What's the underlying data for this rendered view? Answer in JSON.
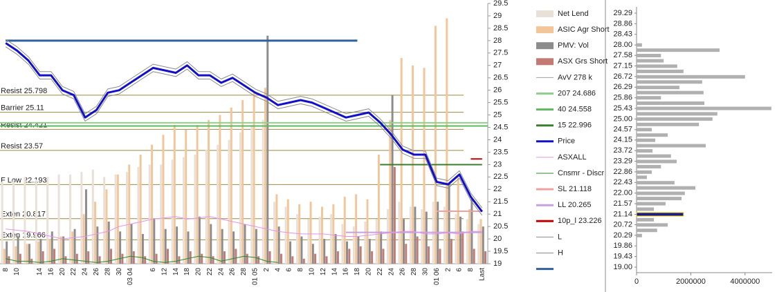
{
  "chart_data": [
    {
      "type": "bar",
      "categories": [
        "8",
        "10",
        null,
        "14",
        "16",
        "20",
        "22",
        "24",
        "26",
        "28",
        "30",
        "03 04",
        null,
        "6",
        "12",
        "14",
        "18",
        "20",
        "22",
        "24",
        "26",
        "28",
        "01 05",
        "2",
        "4",
        "6",
        "8",
        "10",
        "12",
        "14",
        "16",
        "18",
        "20",
        "22",
        "24",
        "26",
        "28",
        "30",
        "01 06",
        "2",
        "6",
        "8",
        "Last"
      ],
      "ylim": [
        19,
        29.5
      ],
      "yticks": [
        19,
        19.5,
        20,
        20.5,
        21,
        21.5,
        22,
        22.5,
        23,
        23.5,
        24,
        24.5,
        25,
        25.5,
        26,
        26.5,
        27,
        27.5,
        28,
        28.5,
        29,
        29.5
      ],
      "series": [
        {
          "name": "Net Lend",
          "kind": "bar",
          "color": "#e9e0d7",
          "values": [
            22.3,
            22.4,
            22.5,
            22.4,
            22.5,
            22.6,
            22.6,
            22.7,
            22.8,
            22.5,
            22.6,
            22.7,
            22.9,
            23.0,
            23.0,
            23.2,
            23.3,
            23.4,
            23.6,
            23.8,
            24.0,
            24.3,
            24.6,
            24.8,
            21.5,
            21.3,
            21.0,
            20.8,
            20.9,
            21.0,
            20.6,
            20.5,
            20.7,
            20.8,
            21.2,
            21.5,
            21.3,
            21.2,
            21.5,
            21.3,
            21.0,
            20.8,
            20.6
          ]
        },
        {
          "name": "ASIC Agr Short",
          "kind": "bar",
          "color": "#f3c699",
          "values": [
            19.6,
            19.7,
            19.8,
            19.9,
            20.0,
            20.1,
            20.3,
            21.0,
            21.5,
            22.0,
            22.6,
            23.0,
            23.4,
            23.8,
            24.2,
            24.6,
            24.4,
            24.6,
            24.8,
            25.0,
            25.3,
            25.6,
            25.9,
            26.1,
            21.8,
            21.6,
            21.4,
            21.5,
            21.3,
            21.4,
            21.7,
            21.8,
            21.6,
            23.4,
            24.8,
            27.3,
            27.0,
            26.9,
            28.6,
            28.9,
            22.5,
            21.2,
            20.8
          ]
        },
        {
          "name": "PMV: Vol",
          "kind": "bar",
          "color": "#8c8c8c",
          "values": [
            19.9,
            20.1,
            19.8,
            20.0,
            20.3,
            20.1,
            20.4,
            22.0,
            20.5,
            20.7,
            20.3,
            20.6,
            20.2,
            20.8,
            20.4,
            20.5,
            20.3,
            20.9,
            20.6,
            20.4,
            20.3,
            20.6,
            20.4,
            28.2,
            20.5,
            19.9,
            20.1,
            19.8,
            20.0,
            20.2,
            19.9,
            20.1,
            20.0,
            20.3,
            25.8,
            20.8,
            21.3,
            21.1,
            21.5,
            22.2,
            20.9,
            21.6,
            20.5
          ]
        },
        {
          "name": "ASX Grs Short",
          "kind": "bar",
          "color": "#c47a74",
          "values": [
            19.3,
            19.4,
            19.2,
            19.5,
            19.6,
            19.3,
            19.4,
            19.5,
            19.3,
            19.6,
            19.4,
            19.5,
            19.3,
            19.4,
            19.6,
            19.3,
            19.5,
            19.4,
            19.3,
            19.5,
            19.6,
            19.4,
            19.3,
            19.5,
            19.4,
            19.3,
            19.2,
            19.4,
            19.3,
            19.5,
            19.6,
            19.7,
            19.5,
            19.6,
            22.9,
            19.8,
            20.1,
            19.7,
            19.6,
            20.0,
            20.3,
            19.6,
            19.5
          ]
        },
        {
          "name": "AvV  278 k",
          "kind": "legend",
          "color": "#a0a0a0"
        },
        {
          "name": "207  24.686",
          "kind": "hline",
          "color": "#8fd08a",
          "value": 24.686
        },
        {
          "name": "40  24.558",
          "kind": "hline",
          "color": "#5cb85c",
          "value": 24.558
        },
        {
          "name": "15  22.996",
          "kind": "hline",
          "color": "#3a7d2c",
          "value": 22.996,
          "extent": [
            33,
            42
          ]
        },
        {
          "name": "Price",
          "kind": "line",
          "color": "#1010c8",
          "width": 3,
          "values": [
            27.9,
            27.6,
            27.2,
            26.6,
            26.6,
            26.0,
            25.8,
            24.9,
            25.2,
            25.9,
            26.0,
            26.3,
            26.6,
            26.9,
            26.8,
            26.7,
            27.0,
            26.6,
            26.6,
            26.3,
            26.5,
            26.2,
            25.9,
            25.7,
            25.4,
            25.5,
            25.6,
            25.5,
            25.3,
            25.1,
            24.9,
            25.0,
            25.1,
            24.7,
            24.2,
            23.6,
            23.4,
            23.4,
            22.3,
            22.2,
            22.6,
            21.7,
            21.1
          ]
        },
        {
          "name": "ASXALL",
          "kind": "line",
          "color": "#e890e8",
          "width": 1,
          "values": [
            20.4,
            20.35,
            20.3,
            20.2,
            20.1,
            20.0,
            20.05,
            20.1,
            20.2,
            20.3,
            20.5,
            20.6,
            20.7,
            20.8,
            20.85,
            20.9,
            20.8,
            20.85,
            20.9,
            20.8,
            20.7,
            20.6,
            20.5,
            20.4,
            20.3,
            20.25,
            20.2,
            20.2,
            20.2,
            20.15,
            20.1,
            20.1,
            20.15,
            20.2,
            20.25,
            20.3,
            20.3,
            20.2,
            20.2,
            20.25,
            20.2,
            20.3,
            20.3
          ]
        },
        {
          "name": "Cnsmr - Discr",
          "kind": "line",
          "color": "#2a8a2a",
          "width": 1,
          "values": [
            19.2,
            19.1,
            19.1,
            19.05,
            19.1,
            19.2,
            19.15,
            19.1,
            19.05,
            19.1,
            19.2,
            19.3,
            19.25,
            19.1,
            19.05,
            19.1,
            19.2,
            19.3,
            19.25,
            19.1,
            19.2,
            19.3,
            19.25,
            19.1,
            19.05,
            null,
            null,
            null,
            null,
            null,
            null,
            null,
            null,
            null,
            null,
            null,
            null,
            null,
            null,
            null,
            null,
            null,
            null
          ]
        },
        {
          "name": "SL  21.118",
          "kind": "hline",
          "color": "#f0a0a0",
          "value": 21.118,
          "extent": [
            38,
            42
          ]
        },
        {
          "name": "LL  20.265",
          "kind": "hline",
          "color": "#c8a0e0",
          "value": 20.265,
          "extent": [
            30,
            42
          ]
        },
        {
          "name": "10p_l  23.226",
          "kind": "hline",
          "color": "#c00000",
          "value": 23.226,
          "extent": [
            41,
            42
          ]
        },
        {
          "name": "L",
          "kind": "line",
          "color": "#8a8a8a",
          "width": 1,
          "values": [
            27.75,
            27.45,
            27.05,
            26.45,
            26.45,
            25.85,
            25.65,
            24.75,
            25.05,
            25.75,
            25.85,
            26.15,
            26.45,
            26.75,
            26.65,
            26.55,
            26.85,
            26.45,
            26.45,
            26.15,
            26.35,
            26.05,
            25.75,
            25.55,
            25.25,
            25.35,
            25.45,
            25.35,
            25.15,
            24.95,
            24.75,
            24.85,
            24.95,
            24.55,
            24.05,
            23.45,
            23.25,
            23.25,
            22.15,
            22.05,
            22.45,
            21.55,
            20.95
          ]
        },
        {
          "name": "H",
          "kind": "line",
          "color": "#8a8a8a",
          "width": 1,
          "values": [
            28.05,
            27.75,
            27.35,
            26.75,
            26.75,
            26.15,
            25.95,
            25.05,
            25.35,
            26.05,
            26.15,
            26.45,
            26.75,
            27.05,
            26.95,
            26.85,
            27.15,
            26.75,
            26.75,
            26.45,
            26.65,
            26.35,
            26.05,
            25.85,
            25.55,
            25.65,
            25.75,
            25.65,
            25.45,
            25.25,
            25.05,
            25.15,
            25.25,
            24.85,
            24.35,
            23.75,
            23.55,
            23.55,
            22.45,
            22.35,
            22.75,
            21.85,
            21.25
          ]
        },
        {
          "kind": "hline",
          "color": "#2e5f9e",
          "value": 28,
          "width": 3,
          "extent": [
            0,
            31
          ]
        }
      ],
      "annotations": [
        {
          "text": "Resist 25.798",
          "value": 25.798
        },
        {
          "text": "Barrier 25.11",
          "value": 25.11
        },
        {
          "text": "Resist 24.421",
          "value": 24.421
        },
        {
          "text": "Resist 23.57",
          "value": 23.57
        },
        {
          "text": "F Low 22.193",
          "value": 22.193
        },
        {
          "text": "Exten 20.817",
          "value": 20.817
        },
        {
          "text": "Exten 19.966",
          "value": 19.966
        }
      ],
      "annotation_color": "#9a8a40"
    },
    {
      "type": "barh",
      "y": [
        28.0,
        27.79,
        27.57,
        27.36,
        27.14,
        26.93,
        26.71,
        26.5,
        26.28,
        26.07,
        25.86,
        25.64,
        25.43,
        25.21,
        25.0,
        24.78,
        24.57,
        24.35,
        24.14,
        23.92,
        23.71,
        23.5,
        23.28,
        23.07,
        22.85,
        22.64,
        22.42,
        22.21,
        21.99,
        21.78,
        21.57,
        21.35,
        21.14,
        20.92,
        20.71,
        20.49,
        20.28
      ],
      "values": [
        200000,
        3060000,
        900000,
        1000000,
        1500000,
        1730000,
        4000000,
        2420000,
        1580000,
        2470000,
        900000,
        2500000,
        4970000,
        2980000,
        2800000,
        2300000,
        560000,
        1150000,
        690000,
        2550000,
        590000,
        1270000,
        1480000,
        900000,
        560000,
        380000,
        1400000,
        2170000,
        1780000,
        1660000,
        1070000,
        640000,
        1730000,
        640000,
        1150000,
        760000,
        200000
      ],
      "color": "#b0b0b0",
      "highlight": {
        "y": 21.14,
        "color": "#1a1a8c",
        "border": "#e8d000"
      },
      "ylim": [
        19,
        29.29
      ],
      "yticks": [
        29.29,
        28.86,
        28.43,
        {
          "value": 28,
          "label": "28.00"
        },
        27.58,
        27.15,
        26.72,
        26.29,
        25.86,
        25.43,
        {
          "value": 25,
          "label": "25.00"
        },
        24.57,
        24.15,
        23.72,
        23.29,
        22.86,
        22.43,
        {
          "value": 22,
          "label": "22.00"
        },
        21.57,
        21.14,
        20.72,
        20.29,
        19.86,
        19.43,
        {
          "value": 19,
          "label": "19.00"
        }
      ],
      "xlim": [
        0,
        5000000
      ],
      "xticks": [
        0,
        2000000,
        4000000
      ]
    }
  ]
}
